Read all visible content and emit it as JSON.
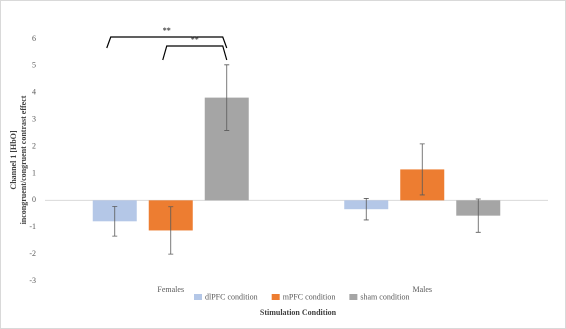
{
  "chart_data": {
    "type": "bar",
    "y_label": [
      "Channel 1 [HbO]",
      "incongruent/congruent contrast effect"
    ],
    "x_label": "Stimulation Condition",
    "categories": [
      "Females",
      "Males"
    ],
    "series": [
      {
        "name": "dlPFC condition",
        "color": "#b4c7e7",
        "values": [
          -0.78,
          -0.33
        ],
        "errors": [
          0.55,
          0.4
        ]
      },
      {
        "name": "mPFC condition",
        "color": "#ed7d31",
        "values": [
          -1.12,
          1.15
        ],
        "errors": [
          0.88,
          0.95
        ]
      },
      {
        "name": "sham condition",
        "color": "#a5a5a5",
        "values": [
          3.82,
          -0.57
        ],
        "errors": [
          1.22,
          0.62
        ]
      }
    ],
    "ylim": [
      -3,
      6
    ],
    "yticks": [
      -3,
      -2,
      -1,
      0,
      1,
      2,
      3,
      4,
      5,
      6
    ],
    "grid": false,
    "legend": "bottom",
    "annotations": [
      "**",
      "**"
    ]
  }
}
